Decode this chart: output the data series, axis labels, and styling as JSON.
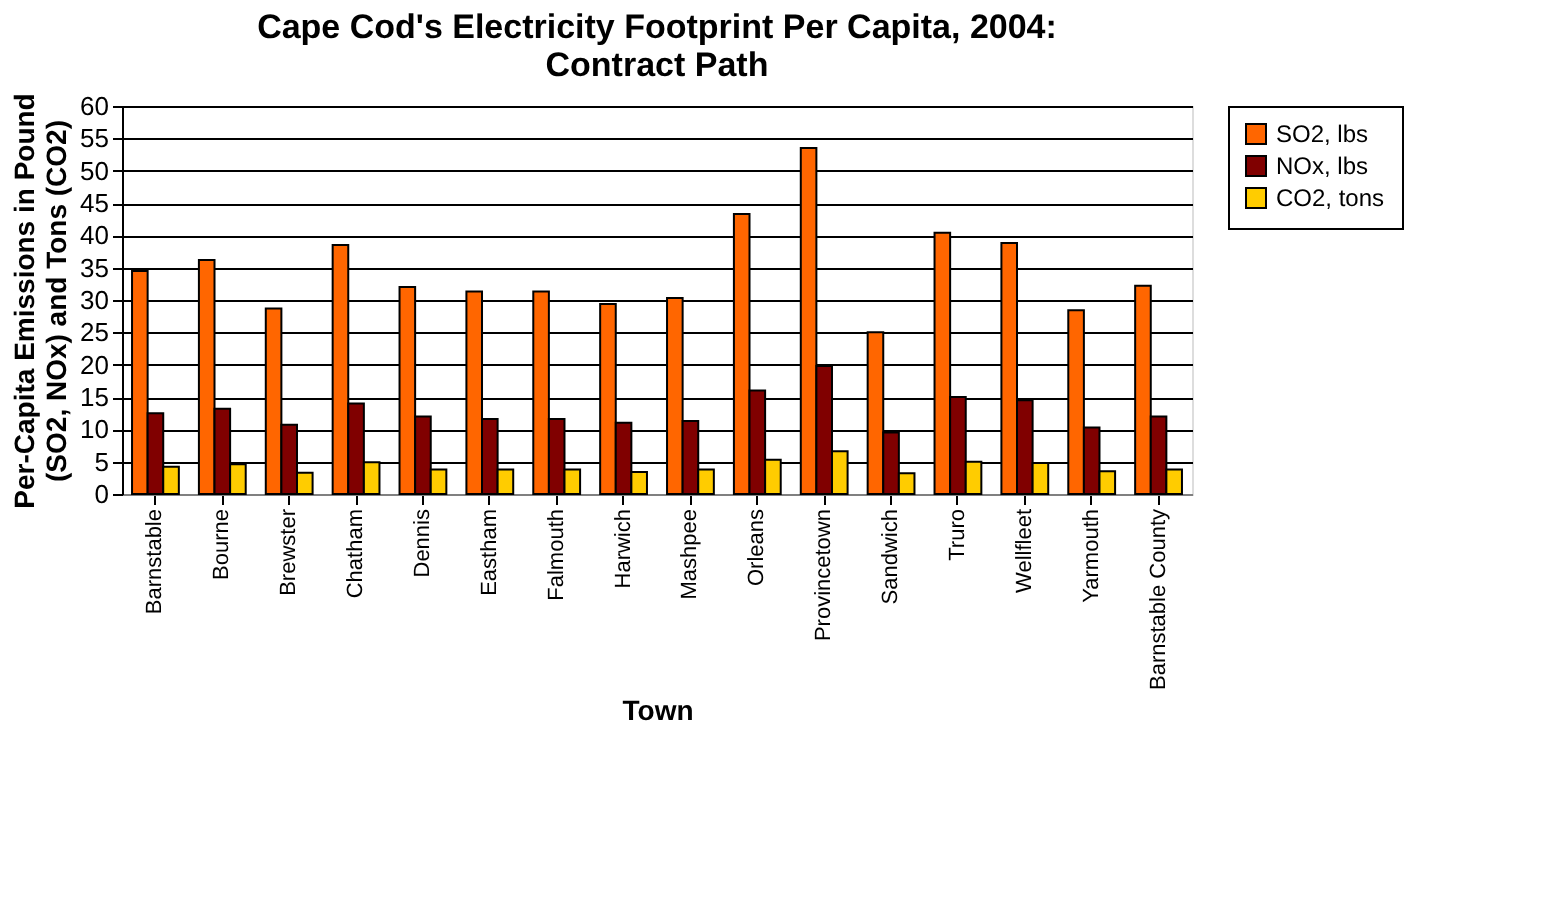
{
  "chart_data": {
    "type": "bar",
    "title": "Cape Cod's Electricity Footprint Per Capita, 2004:\nContract Path",
    "xlabel": "Town",
    "ylabel": "Per-Capita Emissions in Pound\n(SO2, NOx) and Tons (CO2)",
    "categories": [
      "Barnstable",
      "Bourne",
      "Brewster",
      "Chatham",
      "Dennis",
      "Eastham",
      "Falmouth",
      "Harwich",
      "Mashpee",
      "Orleans",
      "Provincetown",
      "Sandwich",
      "Truro",
      "Wellfleet",
      "Yarmouth",
      "Barnstable County"
    ],
    "series": [
      {
        "name": "SO2, lbs",
        "color": "#ff6600",
        "values": [
          34.5,
          36.2,
          28.7,
          38.5,
          32,
          31.3,
          31.3,
          29.4,
          30.3,
          43.3,
          53.5,
          25,
          40.4,
          38.8,
          28.4,
          32.2
        ]
      },
      {
        "name": "NOx, lbs",
        "color": "#800000",
        "values": [
          12.5,
          13.2,
          10.7,
          14,
          12,
          11.6,
          11.6,
          11,
          11.3,
          16,
          19.8,
          9.5,
          15,
          14.5,
          10.3,
          12
        ]
      },
      {
        "name": "CO2, tons",
        "color": "#ffcc00",
        "values": [
          4.2,
          4.6,
          3.3,
          4.9,
          3.8,
          3.8,
          3.8,
          3.4,
          3.8,
          5.3,
          6.6,
          3.2,
          5,
          4.8,
          3.5,
          3.8
        ]
      }
    ],
    "ylim": [
      0,
      60
    ],
    "yticks": [
      0,
      5,
      10,
      15,
      20,
      25,
      30,
      35,
      40,
      45,
      50,
      55,
      60
    ],
    "grid": "y",
    "legend": "right"
  }
}
